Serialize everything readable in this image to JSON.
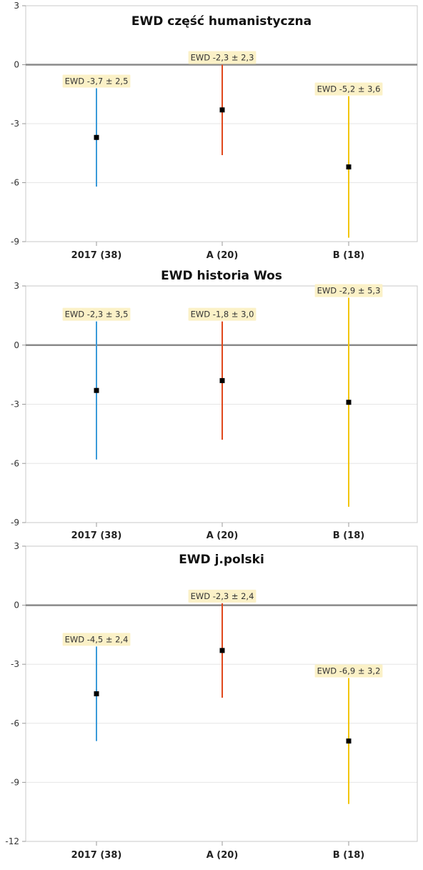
{
  "chart_data": [
    {
      "type": "errorbar",
      "title": "EWD część humanistyczna",
      "categories": [
        "2017 (38)",
        "A (20)",
        "B (18)"
      ],
      "values": [
        -3.7,
        -2.3,
        -5.2
      ],
      "errors": [
        2.5,
        2.3,
        3.6
      ],
      "data_labels": [
        "EWD -3,7 ± 2,5",
        "EWD -2,3 ± 2,3",
        "EWD -5,2 ± 3,6"
      ],
      "colors": [
        "#3b9ad9",
        "#e0481c",
        "#f2c500"
      ],
      "ylim": [
        -9,
        3
      ],
      "yticks": [
        3,
        0,
        -3,
        -6,
        -9
      ],
      "ytick_labels": [
        "3",
        "0",
        "-3",
        "-6",
        "-9"
      ],
      "reference_line": 0,
      "grid": true,
      "xlabel": "",
      "ylabel": ""
    },
    {
      "type": "errorbar",
      "title": "EWD historia Wos",
      "categories": [
        "2017 (38)",
        "A (20)",
        "B (18)"
      ],
      "values": [
        -2.3,
        -1.8,
        -2.9
      ],
      "errors": [
        3.5,
        3.0,
        5.3
      ],
      "data_labels": [
        "EWD -2,3 ± 3,5",
        "EWD -1,8 ± 3,0",
        "EWD -2,9 ± 5,3"
      ],
      "colors": [
        "#3b9ad9",
        "#e0481c",
        "#f2c500"
      ],
      "ylim": [
        -9,
        3
      ],
      "yticks": [
        3,
        0,
        -3,
        -6,
        -9
      ],
      "ytick_labels": [
        "3",
        "0",
        "-3",
        "-6",
        "-9"
      ],
      "reference_line": 0,
      "grid": true,
      "xlabel": "",
      "ylabel": ""
    },
    {
      "type": "errorbar",
      "title": "EWD j.polski",
      "categories": [
        "2017 (38)",
        "A (20)",
        "B (18)"
      ],
      "values": [
        -4.5,
        -2.3,
        -6.9
      ],
      "errors": [
        2.4,
        2.4,
        3.2
      ],
      "data_labels": [
        "EWD -4,5 ± 2,4",
        "EWD -2,3 ± 2,4",
        "EWD -6,9 ± 3,2"
      ],
      "colors": [
        "#3b9ad9",
        "#e0481c",
        "#f2c500"
      ],
      "ylim": [
        -12,
        3
      ],
      "yticks": [
        3,
        0,
        -3,
        -6,
        -9,
        -12
      ],
      "ytick_labels": [
        "3",
        "0",
        "-3",
        "-6",
        "-9",
        "-12"
      ],
      "reference_line": 0,
      "grid": true,
      "xlabel": "",
      "ylabel": ""
    }
  ],
  "colors": {
    "marker": "#000000",
    "zero_line": "#8a8a8a",
    "grid": "#e6e6e6",
    "frame": "#c8c8c8",
    "label_bg": "#fbf1c7"
  }
}
